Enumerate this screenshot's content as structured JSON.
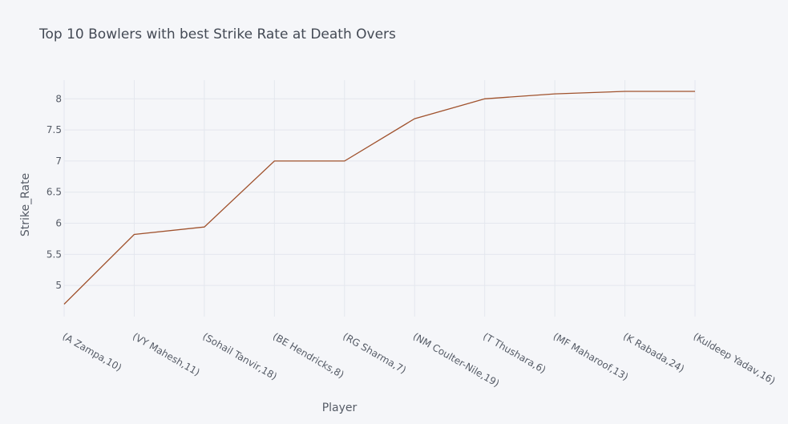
{
  "chart_data": {
    "type": "line",
    "title": "Top 10 Bowlers with best Strike Rate at Death Overs",
    "xlabel": "Player",
    "ylabel": "Strike_Rate",
    "categories": [
      "(A Zampa,10)",
      "(VY Mahesh,11)",
      "(Sohail Tanvir,18)",
      "(BE Hendricks,8)",
      "(RG Sharma,7)",
      "(NM Coulter-Nile,19)",
      "(T Thushara,6)",
      "(MF Maharoof,13)",
      "(K Rabada,24)",
      "(Kuldeep Yadav,16)"
    ],
    "series": [
      {
        "values": [
          4.7,
          5.82,
          5.94,
          7.0,
          7.0,
          7.68,
          8.0,
          8.08,
          8.12,
          8.12
        ]
      }
    ],
    "ylim": [
      4.5,
      8.3
    ],
    "yticks": [
      5,
      5.5,
      6,
      6.5,
      7,
      7.5,
      8
    ],
    "ytick_labels": [
      "5",
      "5.5",
      "6",
      "6.5",
      "7",
      "7.5",
      "8"
    ],
    "grid": true,
    "colors": {
      "line": "#a0522d",
      "grid": "#e4e7ee",
      "background": "#f5f6f9",
      "text": "#555b66"
    }
  }
}
